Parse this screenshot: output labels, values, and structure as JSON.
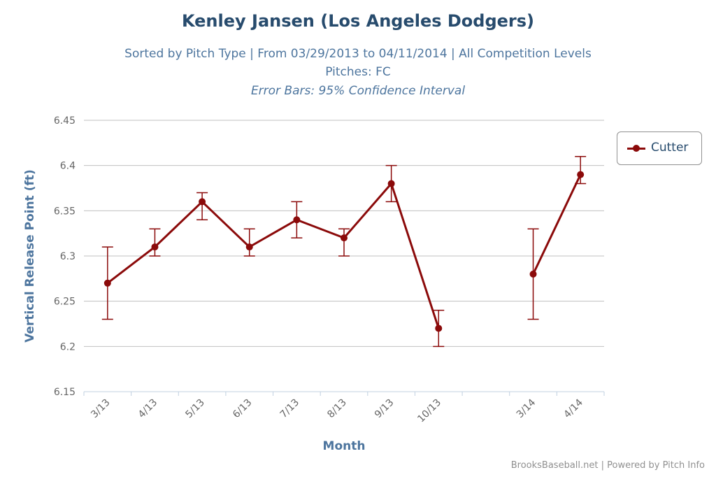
{
  "header": {
    "title": "Kenley Jansen (Los Angeles Dodgers)",
    "subtitle": "Sorted by Pitch Type | From 03/29/2013 to 04/11/2014 | All Competition Levels",
    "pitches": "Pitches: FC",
    "error_note": "Error Bars: 95% Confidence Interval"
  },
  "credits": "BrooksBaseball.net | Powered by Pitch Info",
  "colors": {
    "series": "#8b0a0a",
    "title": "#274b6d",
    "axis_title": "#4d759e",
    "grid": "#c0c0c0"
  },
  "chart_data": {
    "type": "line",
    "title": "Kenley Jansen (Los Angeles Dodgers)",
    "xlabel": "Month",
    "ylabel": "Vertical Release Point (ft)",
    "ylim": [
      6.15,
      6.45
    ],
    "yticks": [
      "6.45",
      "6.4",
      "6.35",
      "6.3",
      "6.25",
      "6.2",
      "6.15"
    ],
    "ytick_values": [
      6.45,
      6.4,
      6.35,
      6.3,
      6.25,
      6.2,
      6.15
    ],
    "categories": [
      "3/13",
      "4/13",
      "5/13",
      "6/13",
      "7/13",
      "8/13",
      "9/13",
      "10/13",
      "",
      "3/14",
      "4/14"
    ],
    "grid": true,
    "legend_position": "top-right",
    "series": [
      {
        "name": "Cutter",
        "values": [
          6.27,
          6.31,
          6.36,
          6.31,
          6.34,
          6.32,
          6.38,
          6.22,
          null,
          6.28,
          6.39
        ],
        "error_low": [
          6.23,
          6.3,
          6.34,
          6.3,
          6.32,
          6.3,
          6.36,
          6.2,
          null,
          6.23,
          6.38
        ],
        "error_high": [
          6.31,
          6.33,
          6.37,
          6.33,
          6.36,
          6.33,
          6.4,
          6.24,
          null,
          6.33,
          6.41
        ]
      }
    ]
  }
}
